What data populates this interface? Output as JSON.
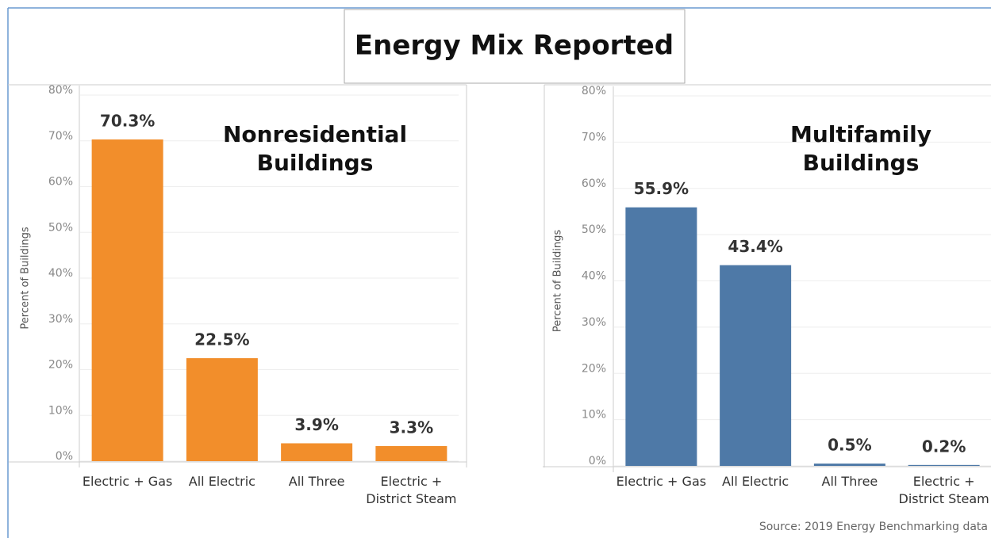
{
  "title": "Energy Mix Reported",
  "source": "Source: 2019 Energy Benchmarking data",
  "chart_data": [
    {
      "type": "bar",
      "title": "Nonresidential Buildings",
      "y_label": "Percent of Buildings",
      "categories": [
        "Electric + Gas",
        "All Electric",
        "All Three",
        "Electric + District Steam"
      ],
      "values": [
        70.3,
        22.5,
        3.9,
        3.3
      ],
      "value_labels": [
        "70.3%",
        "22.5%",
        "3.9%",
        "3.3%"
      ],
      "color": "#f28e2b",
      "ylim": [
        0,
        80
      ],
      "yticks": [
        {
          "value": 0,
          "label": "0%"
        },
        {
          "value": 10,
          "label": "10%"
        },
        {
          "value": 20,
          "label": "20%"
        },
        {
          "value": 30,
          "label": "30%"
        },
        {
          "value": 40,
          "label": "40%"
        },
        {
          "value": 50,
          "label": "50%"
        },
        {
          "value": 60,
          "label": "60%"
        },
        {
          "value": 70,
          "label": "70%"
        },
        {
          "value": 80,
          "label": "80%"
        }
      ],
      "grid": true
    },
    {
      "type": "bar",
      "title": "Multifamily Buildings",
      "y_label": "Percent of Buildings",
      "categories": [
        "Electric + Gas",
        "All Electric",
        "All Three",
        "Electric + District Steam"
      ],
      "values": [
        55.9,
        43.4,
        0.5,
        0.2
      ],
      "value_labels": [
        "55.9%",
        "43.4%",
        "0.5%",
        "0.2%"
      ],
      "color": "#4e79a7",
      "ylim": [
        0,
        80
      ],
      "yticks": [
        {
          "value": 0,
          "label": "0%"
        },
        {
          "value": 10,
          "label": "10%"
        },
        {
          "value": 20,
          "label": "20%"
        },
        {
          "value": 30,
          "label": "30%"
        },
        {
          "value": 40,
          "label": "40%"
        },
        {
          "value": 50,
          "label": "50%"
        },
        {
          "value": 60,
          "label": "60%"
        },
        {
          "value": 70,
          "label": "70%"
        },
        {
          "value": 80,
          "label": "80%"
        }
      ],
      "grid": true
    }
  ]
}
